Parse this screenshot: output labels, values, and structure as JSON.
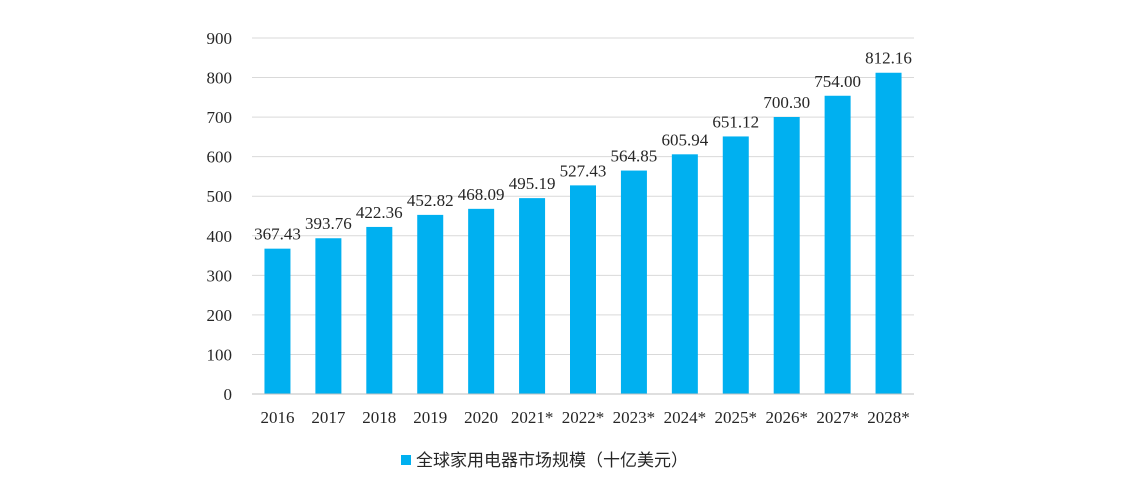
{
  "chart_data": {
    "type": "bar",
    "title": "",
    "xlabel": "",
    "ylabel": "",
    "ylim": [
      0,
      900
    ],
    "yticks": [
      0,
      100,
      200,
      300,
      400,
      500,
      600,
      700,
      800,
      900
    ],
    "grid": true,
    "legend_position": "bottom",
    "categories": [
      "2016",
      "2017",
      "2018",
      "2019",
      "2020",
      "2021*",
      "2022*",
      "2023*",
      "2024*",
      "2025*",
      "2026*",
      "2027*",
      "2028*"
    ],
    "series": [
      {
        "name": "全球家用电器市场规模（十亿美元）",
        "color": "#00b0f0",
        "values": [
          367.43,
          393.76,
          422.36,
          452.82,
          468.09,
          495.19,
          527.43,
          564.85,
          605.94,
          651.12,
          700.3,
          754.0,
          812.16
        ],
        "labels": [
          "367.43",
          "393.76",
          "422.36",
          "452.82",
          "468.09",
          "495.19",
          "527.43",
          "564.85",
          "605.94",
          "651.12",
          "700.30",
          "754.00",
          "812.16"
        ]
      }
    ]
  }
}
